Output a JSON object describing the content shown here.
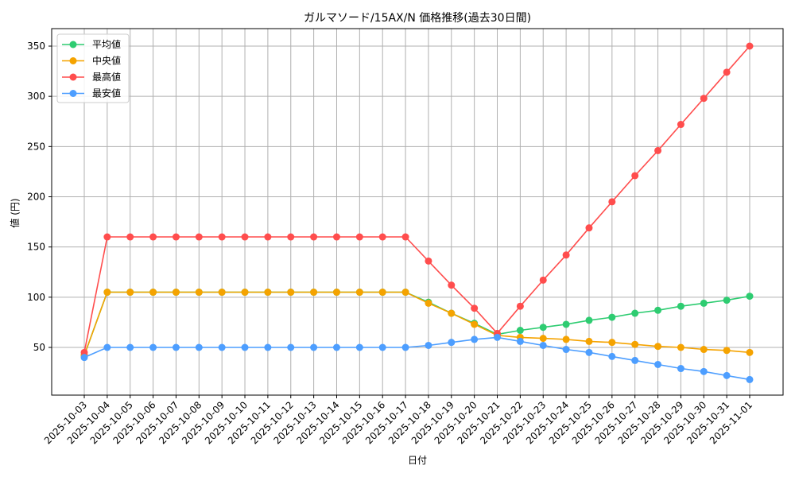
{
  "chart_data": {
    "type": "line",
    "title": "ガルマソード/15AX/N 価格推移(過去30日間)",
    "xlabel": "日付",
    "ylabel": "値 (円)",
    "ylim": [
      10,
      365
    ],
    "yticks": [
      50,
      100,
      150,
      200,
      250,
      300,
      350
    ],
    "grid": true,
    "legend_position": "upper left",
    "categories": [
      "2025-10-03",
      "2025-10-04",
      "2025-10-05",
      "2025-10-06",
      "2025-10-07",
      "2025-10-08",
      "2025-10-09",
      "2025-10-10",
      "2025-10-11",
      "2025-10-12",
      "2025-10-13",
      "2025-10-14",
      "2025-10-15",
      "2025-10-16",
      "2025-10-17",
      "2025-10-18",
      "2025-10-19",
      "2025-10-20",
      "2025-10-21",
      "2025-10-22",
      "2025-10-23",
      "2025-10-24",
      "2025-10-25",
      "2025-10-26",
      "2025-10-27",
      "2025-10-28",
      "2025-10-29",
      "2025-10-30",
      "2025-10-31",
      "2025-11-01"
    ],
    "series": [
      {
        "name": "平均値",
        "color": "#2ecc71",
        "values": [
          42,
          105,
          105,
          105,
          105,
          105,
          105,
          105,
          105,
          105,
          105,
          105,
          105,
          105,
          105,
          95,
          84,
          74,
          63,
          67,
          70,
          73,
          77,
          80,
          84,
          87,
          91,
          94,
          97,
          101
        ]
      },
      {
        "name": "中央値",
        "color": "#f5a300",
        "values": [
          42,
          105,
          105,
          105,
          105,
          105,
          105,
          105,
          105,
          105,
          105,
          105,
          105,
          105,
          105,
          94,
          84,
          73,
          62,
          60,
          59,
          58,
          56,
          55,
          53,
          51,
          50,
          48,
          47,
          45
        ]
      },
      {
        "name": "最高値",
        "color": "#ff4d4d",
        "values": [
          45,
          160,
          160,
          160,
          160,
          160,
          160,
          160,
          160,
          160,
          160,
          160,
          160,
          160,
          160,
          136,
          112,
          89,
          64,
          91,
          117,
          142,
          169,
          195,
          221,
          246,
          272,
          298,
          324,
          350
        ]
      },
      {
        "name": "最安値",
        "color": "#4d9eff",
        "values": [
          40,
          50,
          50,
          50,
          50,
          50,
          50,
          50,
          50,
          50,
          50,
          50,
          50,
          50,
          50,
          52,
          55,
          58,
          60,
          56,
          52,
          48,
          45,
          41,
          37,
          33,
          29,
          26,
          22,
          18
        ]
      }
    ]
  }
}
